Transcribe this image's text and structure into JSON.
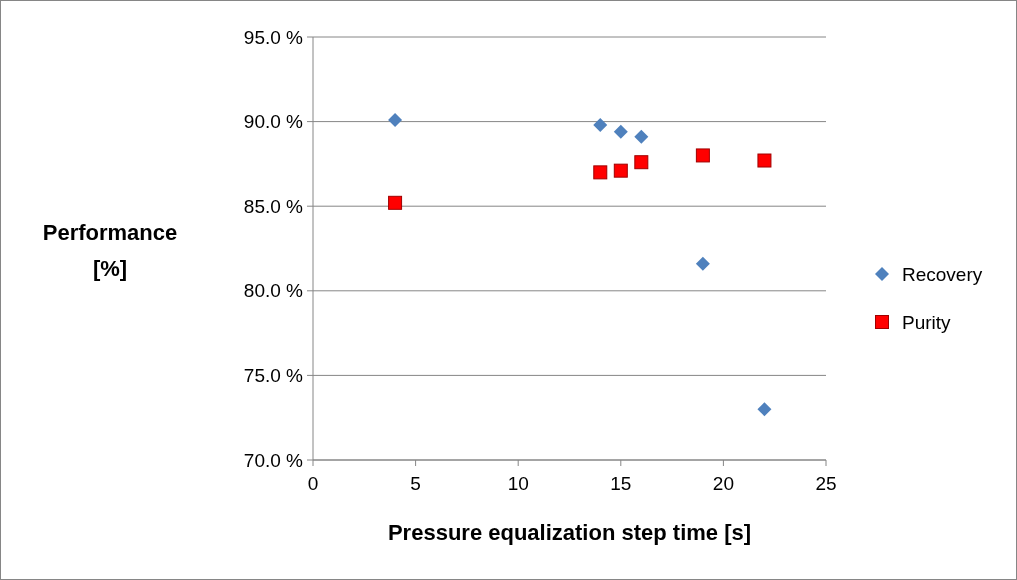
{
  "chart_data": {
    "type": "scatter",
    "xlabel": "Pressure equalization step time [s]",
    "ylabel": "Performance [%]",
    "xlim": [
      0,
      25
    ],
    "xticks": [
      0,
      5,
      10,
      15,
      20,
      25
    ],
    "ylim": [
      70,
      95
    ],
    "yticks": [
      {
        "value": 70,
        "label": "70.0 %"
      },
      {
        "value": 75,
        "label": "75.0 %"
      },
      {
        "value": 80,
        "label": "80.0 %"
      },
      {
        "value": 85,
        "label": "85.0 %"
      },
      {
        "value": 90,
        "label": "90.0 %"
      },
      {
        "value": 95,
        "label": "95.0 %"
      }
    ],
    "grid": "y",
    "legend": "right",
    "series": [
      {
        "name": "Recovery",
        "color": "#4f81bd",
        "marker": "diamond",
        "x": [
          4,
          14,
          15,
          16,
          19,
          22
        ],
        "values": [
          90.1,
          89.8,
          89.4,
          89.1,
          81.6,
          73.0
        ]
      },
      {
        "name": "Purity",
        "color": "#ff0000",
        "marker": "square",
        "x": [
          4,
          14,
          15,
          16,
          19,
          22
        ],
        "values": [
          85.2,
          87.0,
          87.1,
          87.6,
          88.0,
          87.7
        ]
      }
    ]
  }
}
